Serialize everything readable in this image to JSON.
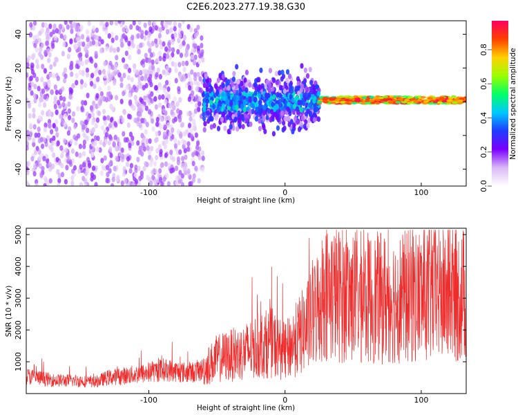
{
  "title": "C2E6.2023.277.19.38.G30",
  "chart_data": [
    {
      "type": "heatmap",
      "xlabel": "Height of straight line (km)",
      "ylabel": "Frequency (Hz)",
      "xlim": [
        -190,
        133
      ],
      "ylim": [
        -50,
        48
      ],
      "xticks": [
        "-100",
        "0",
        "100"
      ],
      "xtick_values": [
        -100,
        0,
        100
      ],
      "yticks": [
        "-40",
        "-20",
        "0",
        "20",
        "40"
      ],
      "ytick_values": [
        -40,
        -20,
        0,
        20,
        40
      ],
      "colorbar": {
        "label": "Normalized spectral amplitude",
        "range": [
          0,
          0.97
        ],
        "ticks": [
          "0.0",
          "0.2",
          "0.4",
          "0.6",
          "0.8"
        ],
        "tick_values": [
          0.0,
          0.2,
          0.4,
          0.6,
          0.8
        ],
        "colormap": [
          "#ffffff",
          "#d9b8f5",
          "#7a00ff",
          "#1f3bff",
          "#00c8ff",
          "#00ff66",
          "#9cff00",
          "#ffd000",
          "#ff4000",
          "#ff0060"
        ]
      },
      "regions": [
        {
          "x": [
            -190,
            -60
          ],
          "freq_spread": [
            -50,
            48
          ],
          "amplitude": [
            0.05,
            0.2
          ]
        },
        {
          "x": [
            -60,
            25
          ],
          "freq_spread": [
            -25,
            20
          ],
          "amplitude": [
            0.1,
            0.35
          ]
        },
        {
          "x": [
            25,
            133
          ],
          "freq_center": 1,
          "freq_spread": [
            -3,
            4
          ],
          "amplitude": [
            0.5,
            0.95
          ]
        }
      ]
    },
    {
      "type": "line",
      "xlabel": "Height of straight line (km)",
      "ylabel": "SNR (10 * v/v)",
      "xlim": [
        -190,
        133
      ],
      "ylim": [
        0,
        5200
      ],
      "xticks": [
        "-100",
        "0",
        "100"
      ],
      "xtick_values": [
        -100,
        0,
        100
      ],
      "yticks": [
        "1000",
        "2000",
        "3000",
        "4000",
        "5000"
      ],
      "ytick_values": [
        1000,
        2000,
        3000,
        4000,
        5000
      ],
      "color": "#ee2c2c",
      "series": [
        {
          "x": [
            -190,
            -170,
            -150,
            -140,
            -130,
            -110,
            -100,
            -95,
            -90,
            -80,
            -70,
            -60,
            -50,
            -40,
            -30,
            -20,
            -10,
            0,
            10,
            20,
            25,
            30,
            40,
            60,
            80,
            100,
            120,
            133
          ],
          "y": [
            550,
            420,
            400,
            350,
            500,
            600,
            650,
            700,
            750,
            700,
            650,
            750,
            1100,
            1200,
            1300,
            1500,
            1600,
            1300,
            1800,
            2300,
            2900,
            3200,
            3100,
            3000,
            3000,
            3100,
            3100,
            3100
          ]
        }
      ]
    }
  ]
}
